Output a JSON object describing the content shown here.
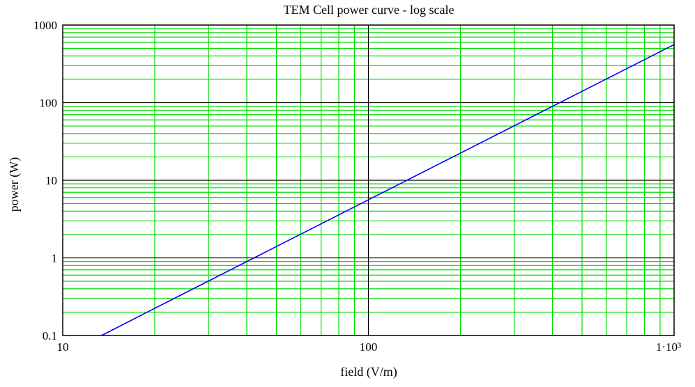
{
  "chart_data": {
    "type": "line",
    "title": "TEM Cell power curve - log scale",
    "xlabel": "field (V/m)",
    "ylabel": "power (W)",
    "x_scale": "log",
    "y_scale": "log",
    "xlim": [
      10,
      1000
    ],
    "ylim": [
      0.1,
      1000
    ],
    "grid": true,
    "x_ticks": [
      {
        "value": 10,
        "label": "10"
      },
      {
        "value": 100,
        "label": "100"
      },
      {
        "value": 1000,
        "label": "1·10³"
      }
    ],
    "y_ticks": [
      {
        "value": 0.1,
        "label": "0.1"
      },
      {
        "value": 1,
        "label": "1"
      },
      {
        "value": 10,
        "label": "10"
      },
      {
        "value": 100,
        "label": "100"
      },
      {
        "value": 1000,
        "label": "1000"
      }
    ],
    "series": [
      {
        "color": "#0000ff",
        "x": [
          13.4,
          20,
          50,
          100,
          200,
          500,
          1000
        ],
        "y": [
          0.1,
          0.224,
          1.4,
          5.6,
          22.4,
          140,
          560
        ]
      }
    ]
  },
  "colors": {
    "minor_grid": "#00dd00",
    "major_grid": "#000000",
    "series_line": "#0000ff",
    "background": "#ffffff"
  }
}
